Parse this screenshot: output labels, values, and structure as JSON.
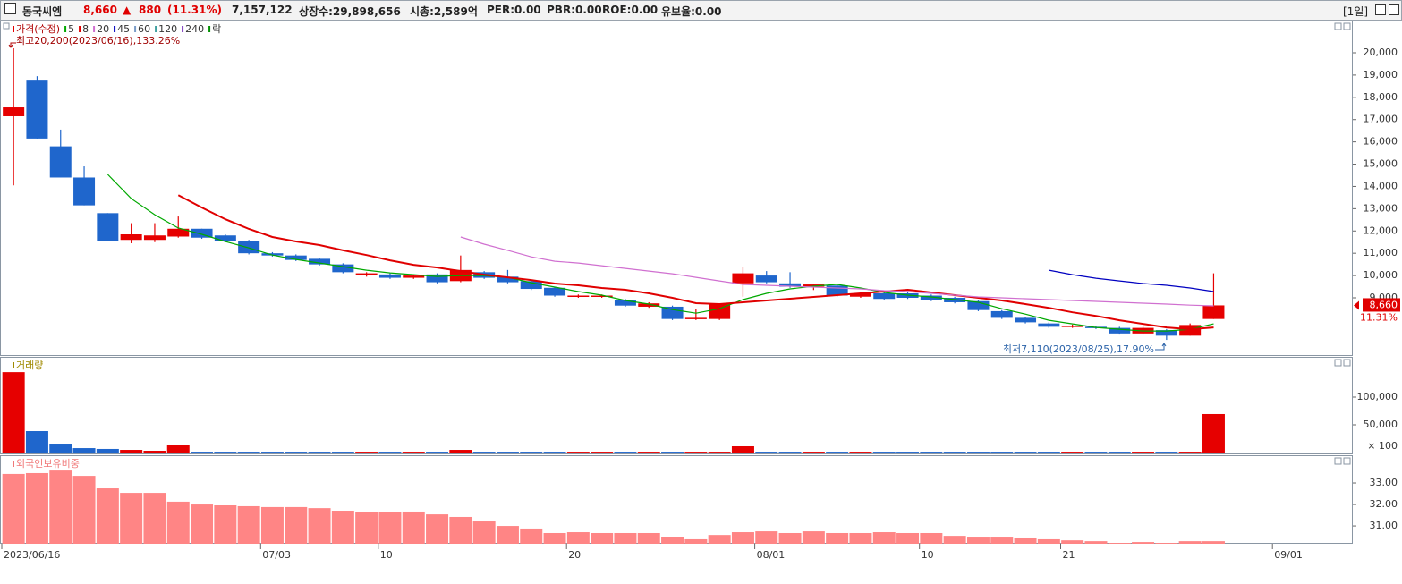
{
  "header": {
    "name": "동국씨엠",
    "price": "8,660",
    "arrow": "▲",
    "change": "880",
    "change_pct": "(11.31%)",
    "volume": "7,157,122",
    "listed": "상장수:29,898,656",
    "market_cap": "시총:2,589억",
    "per": "PER:0.00",
    "pbr": "PBR:0.00",
    "roe": "ROE:0.00",
    "reserve": "유보율:0.00",
    "period": "[1일]"
  },
  "x_axis": {
    "categories": [
      "2023/06/16",
      null,
      null,
      null,
      null,
      null,
      null,
      null,
      null,
      null,
      null,
      "07/03",
      null,
      null,
      null,
      null,
      "10",
      null,
      null,
      null,
      null,
      null,
      null,
      null,
      "20",
      null,
      null,
      null,
      null,
      null,
      null,
      null,
      "08/01",
      null,
      null,
      null,
      null,
      null,
      null,
      "10",
      null,
      null,
      null,
      null,
      null,
      "21",
      null,
      null,
      null,
      null,
      null,
      null,
      null,
      null,
      "09/01",
      null,
      null
    ]
  },
  "chart_data": [
    {
      "type": "candlestick",
      "series": [
        {
          "name": "가격(수정)",
          "up_color": "#e60000",
          "down_color": "#1f66cc",
          "open": [
            17150,
            18750,
            15800,
            14400,
            12800,
            11600,
            11600,
            11750,
            12100,
            11800,
            11550,
            11000,
            10900,
            10750,
            10500,
            10050,
            10050,
            9900,
            10050,
            9750,
            10150,
            9950,
            9750,
            9450,
            9050,
            9050,
            8900,
            8600,
            8600,
            8050,
            8050,
            9650,
            10000,
            9650,
            9500,
            9550,
            9050,
            9200,
            9200,
            9100,
            9000,
            8850,
            8400,
            8100,
            7850,
            7700,
            7700,
            7650,
            7400,
            7550,
            7300,
            8050,
            null,
            null,
            null,
            null,
            null
          ],
          "high": [
            20200,
            18950,
            16550,
            14900,
            12800,
            12350,
            12350,
            12650,
            12100,
            11850,
            11600,
            11050,
            10950,
            10800,
            10550,
            10150,
            10100,
            10050,
            10100,
            10900,
            10200,
            10250,
            9800,
            9500,
            9150,
            9150,
            8950,
            8800,
            8650,
            8500,
            8750,
            10400,
            10200,
            10150,
            9600,
            9600,
            9250,
            9250,
            9250,
            9150,
            9050,
            8900,
            8450,
            8150,
            7900,
            7800,
            7750,
            7700,
            7700,
            7600,
            7850,
            10100,
            null,
            null,
            null,
            null,
            null
          ],
          "low": [
            14050,
            16150,
            14400,
            13150,
            11550,
            11450,
            11500,
            11700,
            11650,
            11500,
            10950,
            10850,
            10650,
            10450,
            10100,
            9950,
            9850,
            9850,
            9650,
            9700,
            9850,
            9650,
            9350,
            9050,
            9000,
            9000,
            8600,
            8550,
            8000,
            8000,
            8000,
            9050,
            9650,
            9450,
            9350,
            9050,
            9000,
            8900,
            8950,
            8850,
            8750,
            8400,
            8050,
            7850,
            7650,
            7650,
            7600,
            7350,
            7350,
            7110,
            7300,
            8050,
            null,
            null,
            null,
            null,
            null
          ],
          "close": [
            17550,
            16150,
            14400,
            13150,
            11550,
            11850,
            11800,
            12100,
            11700,
            11550,
            11000,
            10900,
            10700,
            10500,
            10150,
            10100,
            9900,
            10000,
            9700,
            10250,
            9900,
            9700,
            9400,
            9100,
            9100,
            9100,
            8650,
            8750,
            8050,
            8100,
            8750,
            10100,
            9700,
            9500,
            9600,
            9100,
            9200,
            8950,
            9000,
            8900,
            8800,
            8450,
            8100,
            7900,
            7700,
            7750,
            7650,
            7400,
            7650,
            7300,
            7780,
            8660,
            null,
            null,
            null,
            null,
            null
          ]
        }
      ],
      "lines": [
        {
          "name": "5",
          "color": "#00a800",
          "values": [
            null,
            null,
            null,
            null,
            14540,
            13450,
            12730,
            12130,
            11850,
            11530,
            11240,
            10920,
            10720,
            10560,
            10400,
            10240,
            10120,
            10040,
            9960,
            10000,
            10000,
            9920,
            9680,
            9480,
            9280,
            9120,
            8880,
            8720,
            8470,
            8310,
            8510,
            8920,
            9200,
            9400,
            9520,
            9600,
            9440,
            9240,
            9120,
            9040,
            8920,
            8800,
            8510,
            8270,
            7990,
            7830,
            7670,
            7590,
            7510,
            7510,
            7590,
            7830,
            null,
            null,
            null,
            null,
            null
          ]
        },
        {
          "name": "8",
          "color": "#e00000",
          "values": [
            null,
            null,
            null,
            null,
            null,
            null,
            null,
            13610,
            13050,
            12530,
            12090,
            11730,
            11530,
            11370,
            11130,
            10920,
            10680,
            10480,
            10360,
            10200,
            10040,
            9920,
            9800,
            9640,
            9560,
            9440,
            9360,
            9200,
            9000,
            8760,
            8720,
            8800,
            8880,
            8960,
            9040,
            9120,
            9200,
            9280,
            9360,
            9240,
            9120,
            9000,
            8880,
            8720,
            8550,
            8350,
            8190,
            7990,
            7830,
            7670,
            7590,
            7670,
            null,
            null,
            null,
            null,
            null
          ]
        },
        {
          "name": "20",
          "color": "#d070d0",
          "values": [
            null,
            null,
            null,
            null,
            null,
            null,
            null,
            null,
            null,
            null,
            null,
            null,
            null,
            null,
            null,
            null,
            null,
            null,
            null,
            11730,
            11410,
            11130,
            10840,
            10640,
            10560,
            10440,
            10320,
            10200,
            10080,
            9920,
            9760,
            9600,
            9560,
            9520,
            9480,
            9440,
            9400,
            9320,
            9280,
            9200,
            9120,
            9040,
            9000,
            8960,
            8920,
            8880,
            8840,
            8800,
            8760,
            8720,
            8670,
            8640,
            null,
            null,
            null,
            null,
            null
          ]
        },
        {
          "name": "45",
          "color": "#0000c0",
          "values": [
            null,
            null,
            null,
            null,
            null,
            null,
            null,
            null,
            null,
            null,
            null,
            null,
            null,
            null,
            null,
            null,
            null,
            null,
            null,
            null,
            null,
            null,
            null,
            null,
            null,
            null,
            null,
            null,
            null,
            null,
            null,
            null,
            null,
            null,
            null,
            null,
            null,
            null,
            null,
            null,
            null,
            null,
            null,
            null,
            10240,
            10040,
            9880,
            9760,
            9640,
            9560,
            9440,
            9280,
            null,
            null,
            null,
            null,
            null
          ]
        },
        {
          "name": "60",
          "color": "#7a9cc8"
        },
        {
          "name": "120",
          "color": "#40a0a0"
        },
        {
          "name": "240",
          "color": "#8040c0"
        }
      ],
      "markers": [
        {
          "name": "락",
          "color": "#009000"
        }
      ],
      "annotations": [
        "최고20,200(2023/06/16),133.26%",
        "최저7,110(2023/08/25),17.90%"
      ],
      "last_price": {
        "value": 8660,
        "label": "8,660"
      },
      "last_change_label": "11.31%",
      "ylim": [
        6390,
        21365
      ],
      "yticks": [
        {
          "value": 9000,
          "label": "9,000"
        },
        {
          "value": 10000,
          "label": "10,000"
        },
        {
          "value": 11000,
          "label": "11,000"
        },
        {
          "value": 12000,
          "label": "12,000"
        },
        {
          "value": 13000,
          "label": "13,000"
        },
        {
          "value": 14000,
          "label": "14,000"
        },
        {
          "value": 15000,
          "label": "15,000"
        },
        {
          "value": 16000,
          "label": "16,000"
        },
        {
          "value": 17000,
          "label": "17,000"
        },
        {
          "value": 18000,
          "label": "18,000"
        },
        {
          "value": 19000,
          "label": "19,000"
        },
        {
          "value": 20000,
          "label": "20,000"
        }
      ],
      "grid": false
    },
    {
      "type": "bar",
      "title": "거래량",
      "title_color": "#a08a00",
      "values": [
        145000,
        38700,
        14500,
        8000,
        6500,
        4800,
        3200,
        12900,
        1500,
        1500,
        1500,
        1500,
        1500,
        1500,
        1500,
        1500,
        1500,
        1500,
        1500,
        4800,
        1500,
        1500,
        1500,
        1500,
        1500,
        1500,
        1500,
        1500,
        1500,
        1500,
        1500,
        11300,
        1500,
        1500,
        1500,
        1500,
        1500,
        1500,
        1500,
        1500,
        1500,
        1500,
        1500,
        1500,
        1500,
        1500,
        1500,
        1500,
        1500,
        1500,
        1500,
        69400,
        null,
        null,
        null,
        null,
        null
      ],
      "up_color": "#e60000",
      "down_color": "#1f66cc",
      "ylim": [
        0,
        171000
      ],
      "yticks": [
        {
          "value": 50000,
          "label": "50,000"
        },
        {
          "value": 100000,
          "label": "100,000"
        }
      ],
      "unit_label": "× 100",
      "grid": false
    },
    {
      "type": "bar",
      "title": "외국인보유비중",
      "title_color": "#f07878",
      "color": "#ff8585",
      "values": [
        33.42,
        33.46,
        33.58,
        33.33,
        32.75,
        32.54,
        32.54,
        32.13,
        32.0,
        31.96,
        31.92,
        31.88,
        31.88,
        31.83,
        31.71,
        31.63,
        31.63,
        31.67,
        31.54,
        31.42,
        31.21,
        31.0,
        30.88,
        30.67,
        30.71,
        30.67,
        30.67,
        30.67,
        30.5,
        30.38,
        30.58,
        30.71,
        30.75,
        30.67,
        30.75,
        30.67,
        30.67,
        30.71,
        30.67,
        30.67,
        30.54,
        30.46,
        30.46,
        30.42,
        30.38,
        30.33,
        30.29,
        30.21,
        30.25,
        30.21,
        30.29,
        30.29,
        null,
        null,
        null,
        null,
        null
      ],
      "ylim": [
        30.17,
        34.25
      ],
      "yticks": [
        {
          "value": 31,
          "label": "31.00"
        },
        {
          "value": 32,
          "label": "32.00"
        },
        {
          "value": 33,
          "label": "33.00"
        }
      ],
      "grid": false
    }
  ]
}
